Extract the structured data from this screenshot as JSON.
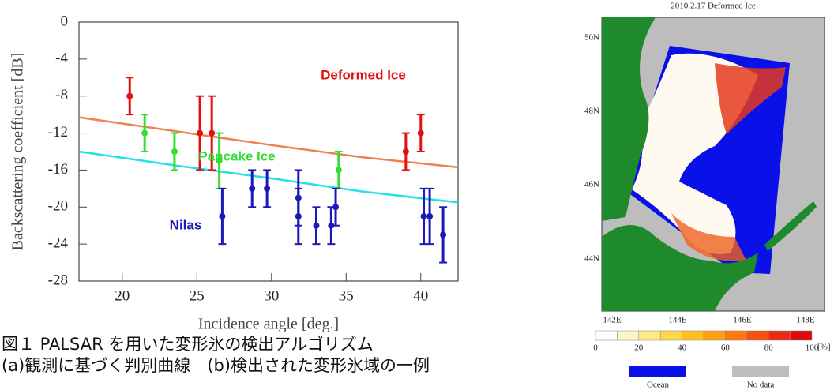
{
  "chart_data": {
    "type": "scatter",
    "xlabel": "Incidence angle [deg.]",
    "ylabel": "Backscattering coefficient [dB]",
    "xlim": [
      17.1,
      42.5
    ],
    "ylim": [
      -28,
      0
    ],
    "xticks": [
      20,
      25,
      30,
      35,
      40
    ],
    "yticks": [
      -28,
      -24,
      -20,
      -16,
      -12,
      -8,
      -4,
      0
    ],
    "series": [
      {
        "name": "Deformed Ice",
        "type": "errorbar",
        "color": "#e41010",
        "x": [
          20.5,
          25.2,
          26,
          39,
          40
        ],
        "values": [
          -8,
          -12,
          -12,
          -14,
          -12
        ],
        "errors": [
          2,
          4,
          4,
          2,
          2
        ]
      },
      {
        "name": "Pancake Ice",
        "type": "errorbar",
        "color": "#33dd33",
        "x": [
          21.5,
          23.5,
          26.5,
          34.5
        ],
        "values": [
          -12,
          -14,
          -15,
          -16
        ],
        "errors": [
          2,
          2,
          3,
          2
        ]
      },
      {
        "name": "Nilas",
        "type": "errorbar",
        "color": "#1a1ab8",
        "x": [
          26.7,
          28.7,
          29.7,
          31.8,
          31.8,
          33,
          34,
          34.3,
          40.2,
          40.6,
          41.5
        ],
        "values": [
          -21,
          -18,
          -18,
          -19,
          -21,
          -22,
          -22,
          -20,
          -21,
          -21,
          -23
        ],
        "errors": [
          3,
          2,
          2,
          3,
          3,
          2,
          2,
          2,
          3,
          3,
          3
        ]
      },
      {
        "type": "line",
        "color": "#f08050",
        "x": [
          17.1,
          24,
          30,
          36,
          42.5
        ],
        "values": [
          -10.3,
          -11.9,
          -13.3,
          -14.6,
          -15.7
        ]
      },
      {
        "type": "line",
        "color": "#22e0e8",
        "x": [
          17.1,
          24,
          30,
          36,
          42.5
        ],
        "values": [
          -14,
          -15.6,
          -16.9,
          -18.3,
          -19.5
        ]
      }
    ]
  },
  "map": {
    "title": "2010.2.17  Deformed Ice",
    "lat_labels": [
      "50N",
      "48N",
      "46N",
      "44N"
    ],
    "lon_labels": [
      "142E",
      "144E",
      "146E",
      "148E"
    ],
    "colorbar_ticks": [
      0,
      20,
      40,
      60,
      80,
      100
    ],
    "colorbar_unit": "[%]",
    "legend": [
      "Ocean",
      "No data"
    ]
  },
  "caption": [
    "図１ PALSAR を用いた変形氷の検出アルゴリズム",
    "(a)観測に基づく判別曲線　(b)検出された変形氷域の一例"
  ]
}
